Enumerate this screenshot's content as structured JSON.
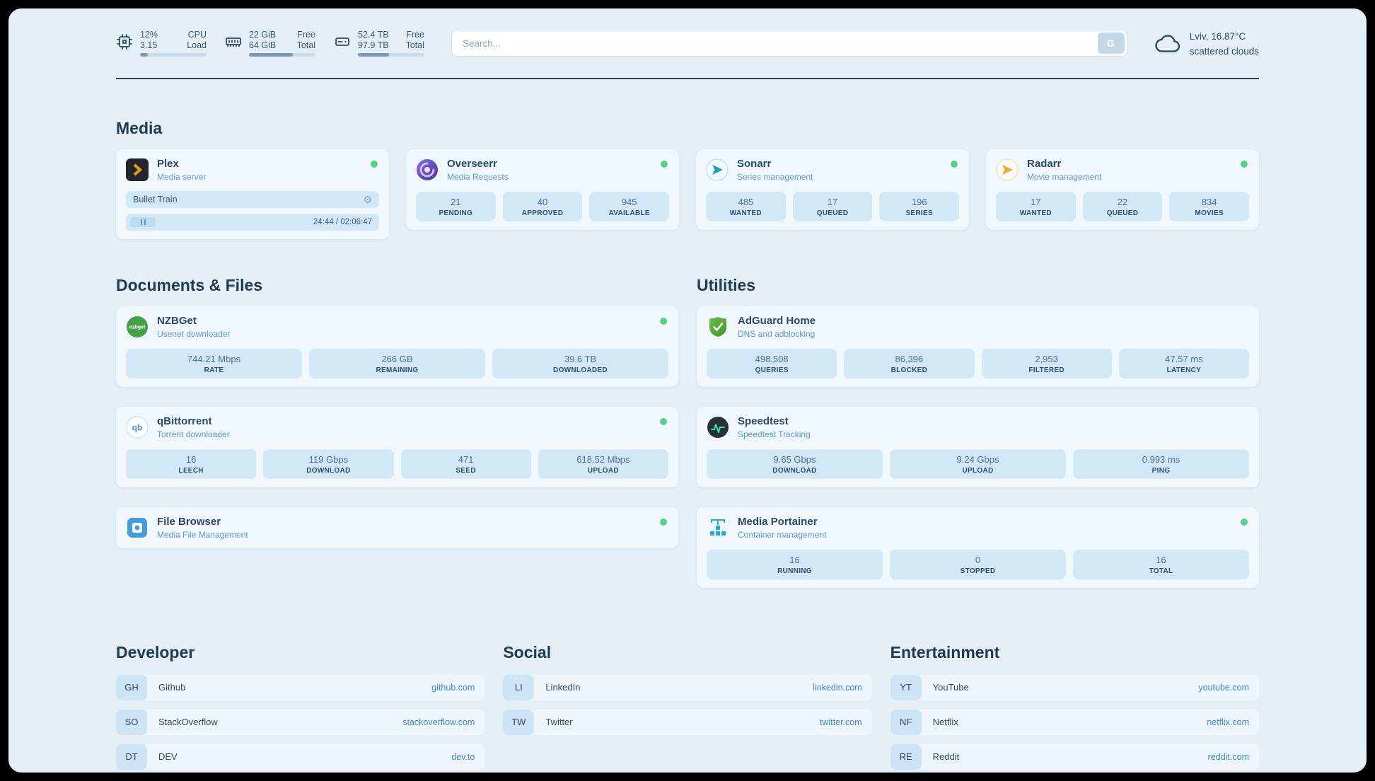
{
  "topbar": {
    "resources": [
      {
        "v1": "12%",
        "l1": "CPU",
        "v2": "3.15",
        "l2": "Load",
        "progress": 12
      },
      {
        "v1": "22 GiB",
        "l1": "Free",
        "v2": "64 GiB",
        "l2": "Total",
        "progress": 66
      },
      {
        "v1": "52.4 TB",
        "l1": "Free",
        "v2": "97.9 TB",
        "l2": "Total",
        "progress": 47
      }
    ],
    "search": {
      "placeholder": "Search...",
      "button_label": "G"
    },
    "weather": {
      "location": "Lviv, 16.87°C",
      "condition": "scattered clouds"
    }
  },
  "media": {
    "title": "Media",
    "plex": {
      "name": "Plex",
      "desc": "Media server",
      "now_playing": "Bullet Train",
      "time": "24:44 / 02:06:47"
    },
    "overseerr": {
      "name": "Overseerr",
      "desc": "Media Requests",
      "stats": [
        {
          "value": "21",
          "label": "PENDING"
        },
        {
          "value": "40",
          "label": "APPROVED"
        },
        {
          "value": "945",
          "label": "AVAILABLE"
        }
      ]
    },
    "sonarr": {
      "name": "Sonarr",
      "desc": "Series management",
      "stats": [
        {
          "value": "485",
          "label": "WANTED"
        },
        {
          "value": "17",
          "label": "QUEUED"
        },
        {
          "value": "196",
          "label": "SERIES"
        }
      ]
    },
    "radarr": {
      "name": "Radarr",
      "desc": "Movie management",
      "stats": [
        {
          "value": "17",
          "label": "WANTED"
        },
        {
          "value": "22",
          "label": "QUEUED"
        },
        {
          "value": "834",
          "label": "MOVIES"
        }
      ]
    }
  },
  "documents": {
    "title": "Documents & Files",
    "nzbget": {
      "name": "NZBGet",
      "desc": "Usenet downloader",
      "stats": [
        {
          "value": "744.21 Mbps",
          "label": "RATE"
        },
        {
          "value": "266 GB",
          "label": "REMAINING"
        },
        {
          "value": "39.6 TB",
          "label": "DOWNLOADED"
        }
      ]
    },
    "qbittorrent": {
      "name": "qBittorrent",
      "desc": "Torrent downloader",
      "stats": [
        {
          "value": "16",
          "label": "LEECH"
        },
        {
          "value": "119 Gbps",
          "label": "DOWNLOAD"
        },
        {
          "value": "471",
          "label": "SEED"
        },
        {
          "value": "618.52 Mbps",
          "label": "UPLOAD"
        }
      ]
    },
    "filebrowser": {
      "name": "File Browser",
      "desc": "Media File Management"
    }
  },
  "utilities": {
    "title": "Utilities",
    "adguard": {
      "name": "AdGuard Home",
      "desc": "DNS and adblocking",
      "stats": [
        {
          "value": "498,508",
          "label": "QUERIES"
        },
        {
          "value": "86,396",
          "label": "BLOCKED"
        },
        {
          "value": "2,953",
          "label": "FILTERED"
        },
        {
          "value": "47.57 ms",
          "label": "LATENCY"
        }
      ]
    },
    "speedtest": {
      "name": "Speedtest",
      "desc": "Speedtest Tracking",
      "stats": [
        {
          "value": "9.65 Gbps",
          "label": "DOWNLOAD"
        },
        {
          "value": "9.24 Gbps",
          "label": "UPLOAD"
        },
        {
          "value": "0.993 ms",
          "label": "PING"
        }
      ]
    },
    "portainer": {
      "name": "Media Portainer",
      "desc": "Container management",
      "stats": [
        {
          "value": "16",
          "label": "RUNNING"
        },
        {
          "value": "0",
          "label": "STOPPED"
        },
        {
          "value": "16",
          "label": "TOTAL"
        }
      ]
    }
  },
  "bookmarks": {
    "developer": {
      "title": "Developer",
      "items": [
        {
          "abbr": "GH",
          "name": "Github",
          "link": "github.com"
        },
        {
          "abbr": "SO",
          "name": "StackOverflow",
          "link": "stackoverflow.com"
        },
        {
          "abbr": "DT",
          "name": "DEV",
          "link": "dev.to"
        }
      ]
    },
    "social": {
      "title": "Social",
      "items": [
        {
          "abbr": "LI",
          "name": "LinkedIn",
          "link": "linkedin.com"
        },
        {
          "abbr": "TW",
          "name": "Twitter",
          "link": "twitter.com"
        }
      ]
    },
    "entertainment": {
      "title": "Entertainment",
      "items": [
        {
          "abbr": "YT",
          "name": "YouTube",
          "link": "youtube.com"
        },
        {
          "abbr": "NF",
          "name": "Netflix",
          "link": "netflix.com"
        },
        {
          "abbr": "RE",
          "name": "Reddit",
          "link": "reddit.com"
        }
      ]
    }
  },
  "colors": {
    "accent": "#3a8ad6",
    "status_ok": "#57d186",
    "background": "#e4eff8"
  }
}
